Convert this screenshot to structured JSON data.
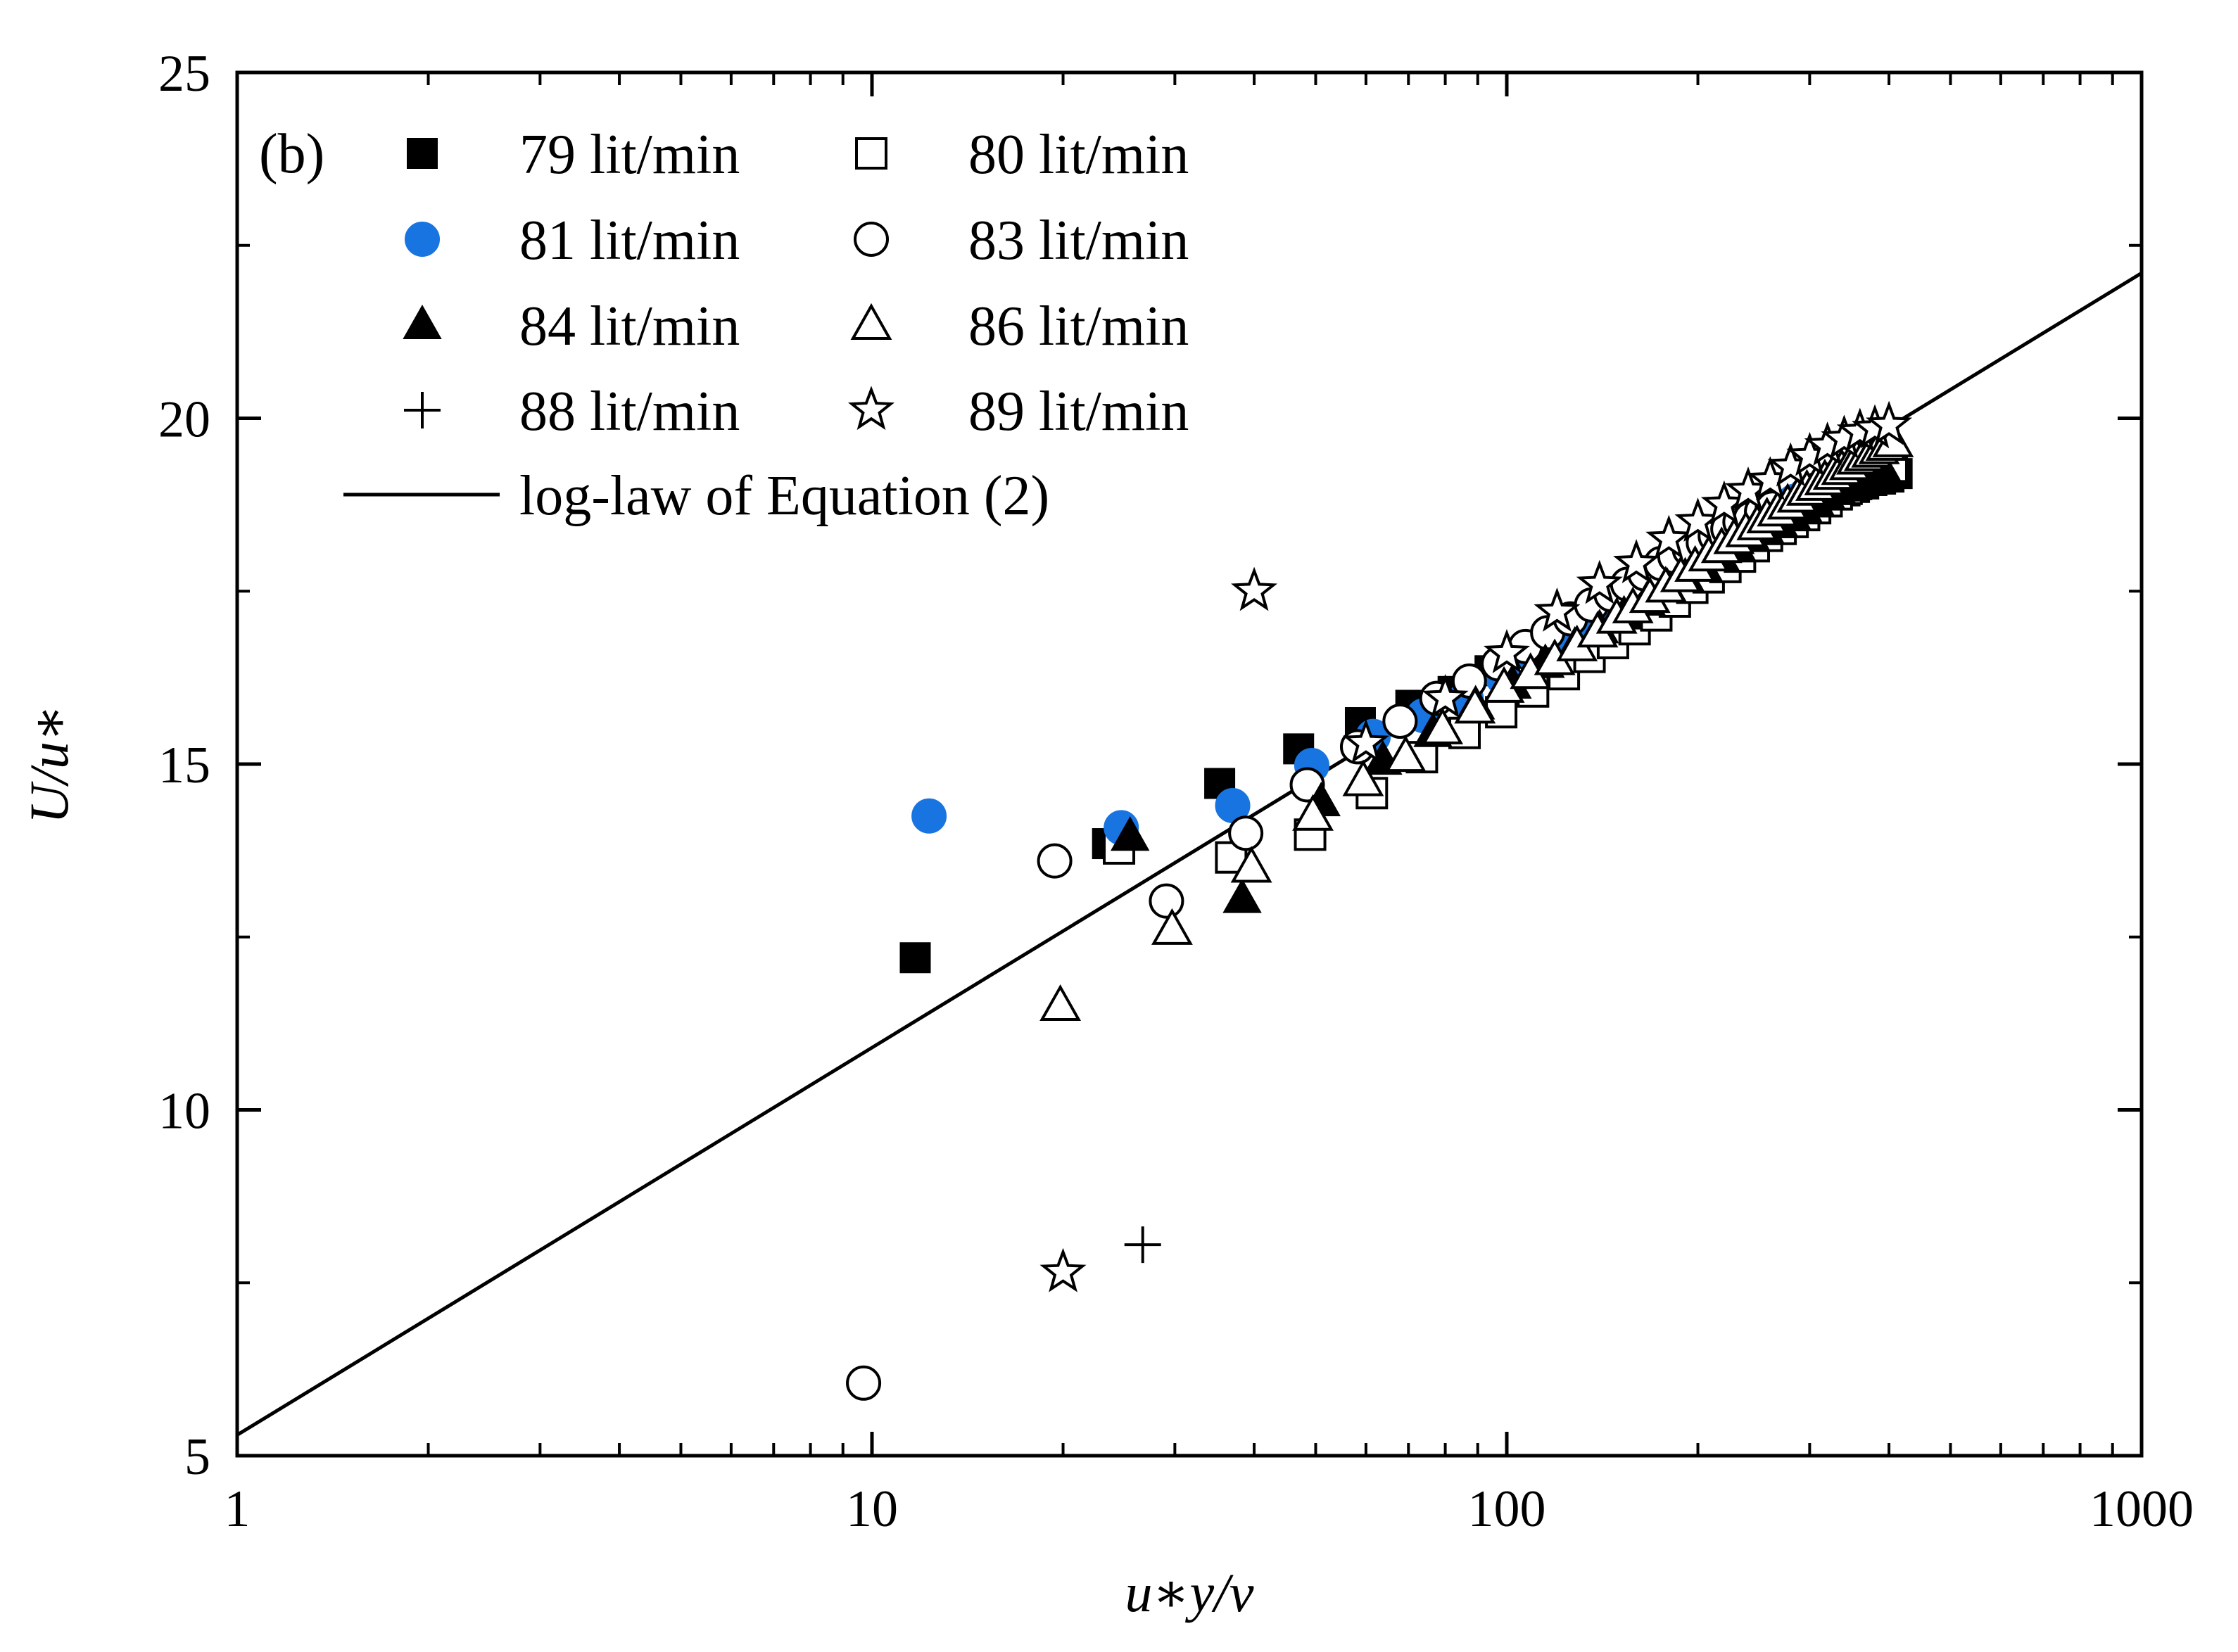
{
  "chart_data": {
    "type": "scatter",
    "panel_label": "(b)",
    "xlabel": "u∗y/ν",
    "ylabel": "U/u∗",
    "xscale": "log",
    "xlim": [
      1,
      1000
    ],
    "ylim": [
      5,
      25
    ],
    "x_ticks": [
      1,
      10,
      100,
      1000
    ],
    "x_tick_labels": [
      "1",
      "10",
      "100",
      "1000"
    ],
    "y_ticks": [
      5,
      10,
      15,
      20,
      25
    ],
    "y_tick_labels": [
      "5",
      "10",
      "15",
      "20",
      "25"
    ],
    "legend_position": "top-left",
    "series": [
      {
        "name": "79 lit/min",
        "marker": "filled-square",
        "color": "#000000",
        "x": [
          11.7,
          23.5,
          35.3,
          47.0,
          58.8,
          70.6,
          82.3,
          94.1,
          106,
          118,
          129,
          141,
          153,
          165,
          176,
          188,
          200,
          212,
          224,
          235,
          247,
          259,
          271,
          282,
          294,
          306,
          318,
          329,
          341,
          353,
          365,
          376,
          388,
          400,
          412
        ],
        "y": [
          12.2,
          13.85,
          14.72,
          15.22,
          15.6,
          15.85,
          16.05,
          16.35,
          16.6,
          16.85,
          17.05,
          17.25,
          17.4,
          17.55,
          17.7,
          17.85,
          17.95,
          18.1,
          18.2,
          18.3,
          18.4,
          18.5,
          18.55,
          18.65,
          18.7,
          18.8,
          18.85,
          18.9,
          18.95,
          19.0,
          19.05,
          19.1,
          19.12,
          19.15,
          19.2
        ]
      },
      {
        "name": "80 lit/min",
        "marker": "open-square",
        "color": "#000000",
        "x": [
          24.5,
          36.8,
          49,
          61.3,
          73.5,
          85.8,
          98,
          110,
          123,
          135,
          147,
          159,
          172,
          184,
          196,
          208,
          221,
          233,
          245,
          257,
          270,
          282,
          294,
          306,
          319,
          331,
          343,
          355,
          368,
          380,
          392,
          404
        ],
        "y": [
          13.78,
          13.65,
          13.98,
          14.58,
          15.1,
          15.45,
          15.75,
          16.05,
          16.3,
          16.55,
          16.75,
          16.95,
          17.15,
          17.35,
          17.55,
          17.7,
          17.85,
          18.0,
          18.15,
          18.3,
          18.4,
          18.5,
          18.6,
          18.7,
          18.8,
          18.9,
          18.98,
          19.05,
          19.12,
          19.2,
          19.25,
          19.3
        ]
      },
      {
        "name": "81 lit/min",
        "marker": "filled-circle",
        "color": "#1874e0",
        "x": [
          12.3,
          24.7,
          37,
          49.3,
          61.6,
          74,
          86.3,
          98.6,
          111,
          123,
          136,
          148,
          160,
          173,
          185,
          197,
          210,
          222,
          234,
          247,
          259,
          271,
          284,
          296,
          308,
          321
        ],
        "y": [
          14.25,
          14.08,
          14.4,
          14.98,
          15.4,
          15.7,
          15.95,
          16.25,
          16.55,
          16.8,
          17.05,
          17.25,
          17.45,
          17.6,
          17.8,
          17.95,
          18.1,
          18.25,
          18.35,
          18.5,
          18.6,
          18.7,
          18.8,
          18.9,
          18.95,
          19.0
        ]
      },
      {
        "name": "83 lit/min",
        "marker": "open-circle",
        "color": "#000000",
        "x": [
          9.7,
          19.4,
          29.1,
          38.8,
          48.5,
          58.2,
          67.9,
          77.6,
          87.3,
          97,
          107,
          116,
          126,
          136,
          146,
          155,
          165,
          175,
          184,
          194,
          204,
          213,
          223,
          233,
          242,
          252,
          262
        ],
        "y": [
          6.05,
          13.6,
          13.02,
          14.0,
          14.7,
          15.25,
          15.62,
          15.95,
          16.2,
          16.45,
          16.7,
          16.9,
          17.1,
          17.3,
          17.45,
          17.6,
          17.75,
          17.9,
          18.0,
          18.1,
          18.2,
          18.3,
          18.4,
          18.5,
          18.55,
          18.65,
          18.7
        ]
      },
      {
        "name": "84 lit/min",
        "marker": "filled-triangle",
        "color": "#000000",
        "x": [
          25.5,
          38.3,
          51,
          63.8,
          76.5,
          89.3,
          102,
          115,
          128,
          140,
          153,
          166,
          179,
          191,
          204,
          217,
          230,
          242,
          255,
          268,
          281,
          293,
          306,
          319,
          332,
          344,
          357,
          370,
          383,
          395
        ],
        "y": [
          13.95,
          13.05,
          14.45,
          15.05,
          15.45,
          15.85,
          16.15,
          16.45,
          16.7,
          16.95,
          17.15,
          17.35,
          17.55,
          17.7,
          17.85,
          18.0,
          18.15,
          18.3,
          18.4,
          18.5,
          18.6,
          18.7,
          18.8,
          18.88,
          18.95,
          19.0,
          19.05,
          19.1,
          19.15,
          19.2
        ]
      },
      {
        "name": "86 lit/min",
        "marker": "open-triangle",
        "color": "#000000",
        "x": [
          19.8,
          29.7,
          39.6,
          49.5,
          59.4,
          69.3,
          79.2,
          89.1,
          99,
          109,
          119,
          129,
          139,
          149,
          158,
          168,
          178,
          188,
          198,
          208,
          218,
          228,
          238,
          248,
          257,
          267,
          277,
          287,
          297,
          307,
          317,
          327,
          337,
          347,
          356,
          366,
          376,
          386,
          396,
          406
        ],
        "y": [
          11.5,
          12.6,
          13.5,
          14.25,
          14.75,
          15.1,
          15.5,
          15.8,
          16.1,
          16.3,
          16.5,
          16.7,
          16.9,
          17.1,
          17.25,
          17.4,
          17.55,
          17.7,
          17.85,
          18.0,
          18.12,
          18.25,
          18.35,
          18.45,
          18.55,
          18.65,
          18.75,
          18.85,
          18.95,
          19.02,
          19.1,
          19.18,
          19.25,
          19.32,
          19.4,
          19.45,
          19.5,
          19.55,
          19.6,
          19.65
        ]
      },
      {
        "name": "88 lit/min",
        "marker": "plus",
        "color": "#000000",
        "x": [
          26.7
        ],
        "y": [
          8.05
        ]
      },
      {
        "name": "89 lit/min",
        "marker": "open-star",
        "color": "#000000",
        "x": [
          20,
          40,
          60,
          80,
          100,
          120,
          140,
          160,
          180,
          200,
          220,
          240,
          260,
          280,
          300,
          320,
          340,
          360,
          380,
          400
        ],
        "y": [
          7.65,
          17.5,
          15.3,
          15.95,
          16.6,
          17.2,
          17.6,
          17.9,
          18.25,
          18.5,
          18.75,
          18.95,
          19.1,
          19.3,
          19.45,
          19.6,
          19.7,
          19.8,
          19.85,
          19.9
        ]
      },
      {
        "name": "log-law of Equation (2)",
        "marker": "line",
        "color": "#000000",
        "x": [
          1,
          1000
        ],
        "y": [
          5.3,
          22.1
        ]
      }
    ]
  }
}
